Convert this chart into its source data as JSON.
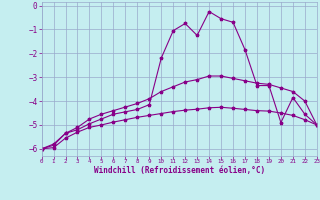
{
  "background_color": "#c5eef0",
  "line_color": "#880088",
  "grid_color": "#99aacc",
  "xlim": [
    0,
    23
  ],
  "ylim": [
    -6.3,
    0.15
  ],
  "yticks": [
    0,
    -1,
    -2,
    -3,
    -4,
    -5,
    -6
  ],
  "xticks": [
    0,
    1,
    2,
    3,
    4,
    5,
    6,
    7,
    8,
    9,
    10,
    11,
    12,
    13,
    14,
    15,
    16,
    17,
    18,
    19,
    20,
    21,
    22,
    23
  ],
  "xlabel": "Windchill (Refroidissement éolien,°C)",
  "curve1_x": [
    0,
    1,
    2,
    3,
    4,
    5,
    6,
    7,
    8,
    9,
    10,
    11,
    12,
    13,
    14,
    15,
    16,
    17,
    18,
    19,
    20,
    21,
    22,
    23
  ],
  "curve1_y": [
    -6.0,
    -5.8,
    -5.35,
    -5.2,
    -4.95,
    -4.75,
    -4.55,
    -4.45,
    -4.35,
    -4.15,
    -2.2,
    -1.05,
    -0.75,
    -1.25,
    -0.25,
    -0.55,
    -0.7,
    -1.85,
    -3.35,
    -3.35,
    -4.9,
    -3.85,
    -4.55,
    -5.0
  ],
  "curve2_x": [
    0,
    1,
    2,
    3,
    4,
    5,
    6,
    7,
    8,
    9,
    10,
    11,
    12,
    13,
    14,
    15,
    16,
    17,
    18,
    19,
    20,
    21,
    22,
    23
  ],
  "curve2_y": [
    -6.0,
    -5.85,
    -5.35,
    -5.1,
    -4.75,
    -4.55,
    -4.4,
    -4.25,
    -4.1,
    -3.9,
    -3.6,
    -3.4,
    -3.2,
    -3.1,
    -2.95,
    -2.95,
    -3.05,
    -3.15,
    -3.25,
    -3.3,
    -3.45,
    -3.6,
    -4.0,
    -5.0
  ],
  "curve3_x": [
    0,
    1,
    2,
    3,
    4,
    5,
    6,
    7,
    8,
    9,
    10,
    11,
    12,
    13,
    14,
    15,
    16,
    17,
    18,
    19,
    20,
    21,
    22,
    23
  ],
  "curve3_y": [
    -6.0,
    -5.95,
    -5.55,
    -5.3,
    -5.1,
    -5.0,
    -4.88,
    -4.78,
    -4.68,
    -4.6,
    -4.52,
    -4.44,
    -4.38,
    -4.34,
    -4.28,
    -4.26,
    -4.3,
    -4.35,
    -4.4,
    -4.42,
    -4.5,
    -4.6,
    -4.78,
    -5.0
  ]
}
